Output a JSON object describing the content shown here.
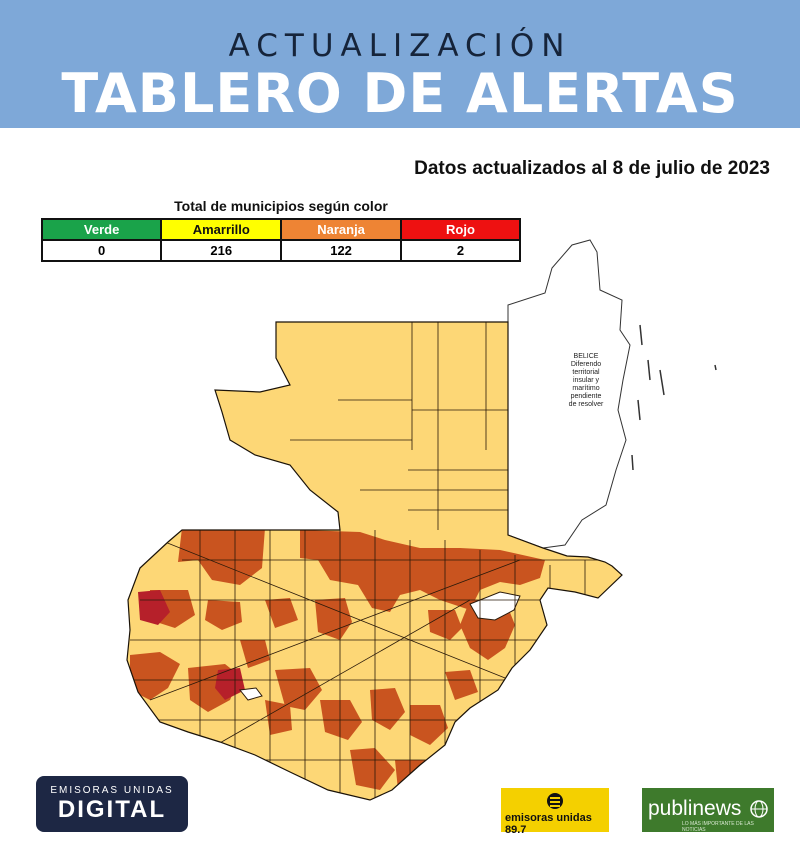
{
  "header": {
    "subtitle": "ACTUALIZACIÓN",
    "title": "TABLERO DE ALERTAS"
  },
  "date_note": "Datos actualizados al 8 de julio de 2023",
  "summary": {
    "caption": "Total de municipios según color",
    "columns": [
      {
        "label": "Verde",
        "value": "0",
        "color": "#1aa34a",
        "text_color": "#ffffff"
      },
      {
        "label": "Amarrillo",
        "value": "216",
        "color": "#ffff00",
        "text_color": "#111111"
      },
      {
        "label": "Naranja",
        "value": "122",
        "color": "#ee8434",
        "text_color": "#ffffff"
      },
      {
        "label": "Rojo",
        "value": "2",
        "color": "#ee1111",
        "text_color": "#ffffff"
      }
    ]
  },
  "map": {
    "belize_label": [
      "BELICE",
      "Diferendo",
      "territorial",
      "insular y",
      "marítimo",
      "pendiente",
      "de resolver"
    ],
    "colors": {
      "yellow": "#fdd776",
      "orange": "#c9541f",
      "red": "#b6202a",
      "border": "#2a1a0a"
    }
  },
  "logos": {
    "emisoras_top": "EMISORAS UNIDAS",
    "emisoras_digital": "DIGITAL",
    "emisoras_radio": "emisoras unidas 89.7",
    "publinews": "publinews",
    "publinews_tagline": "LO MÁS IMPORTANTE DE LAS NOTICIAS"
  }
}
